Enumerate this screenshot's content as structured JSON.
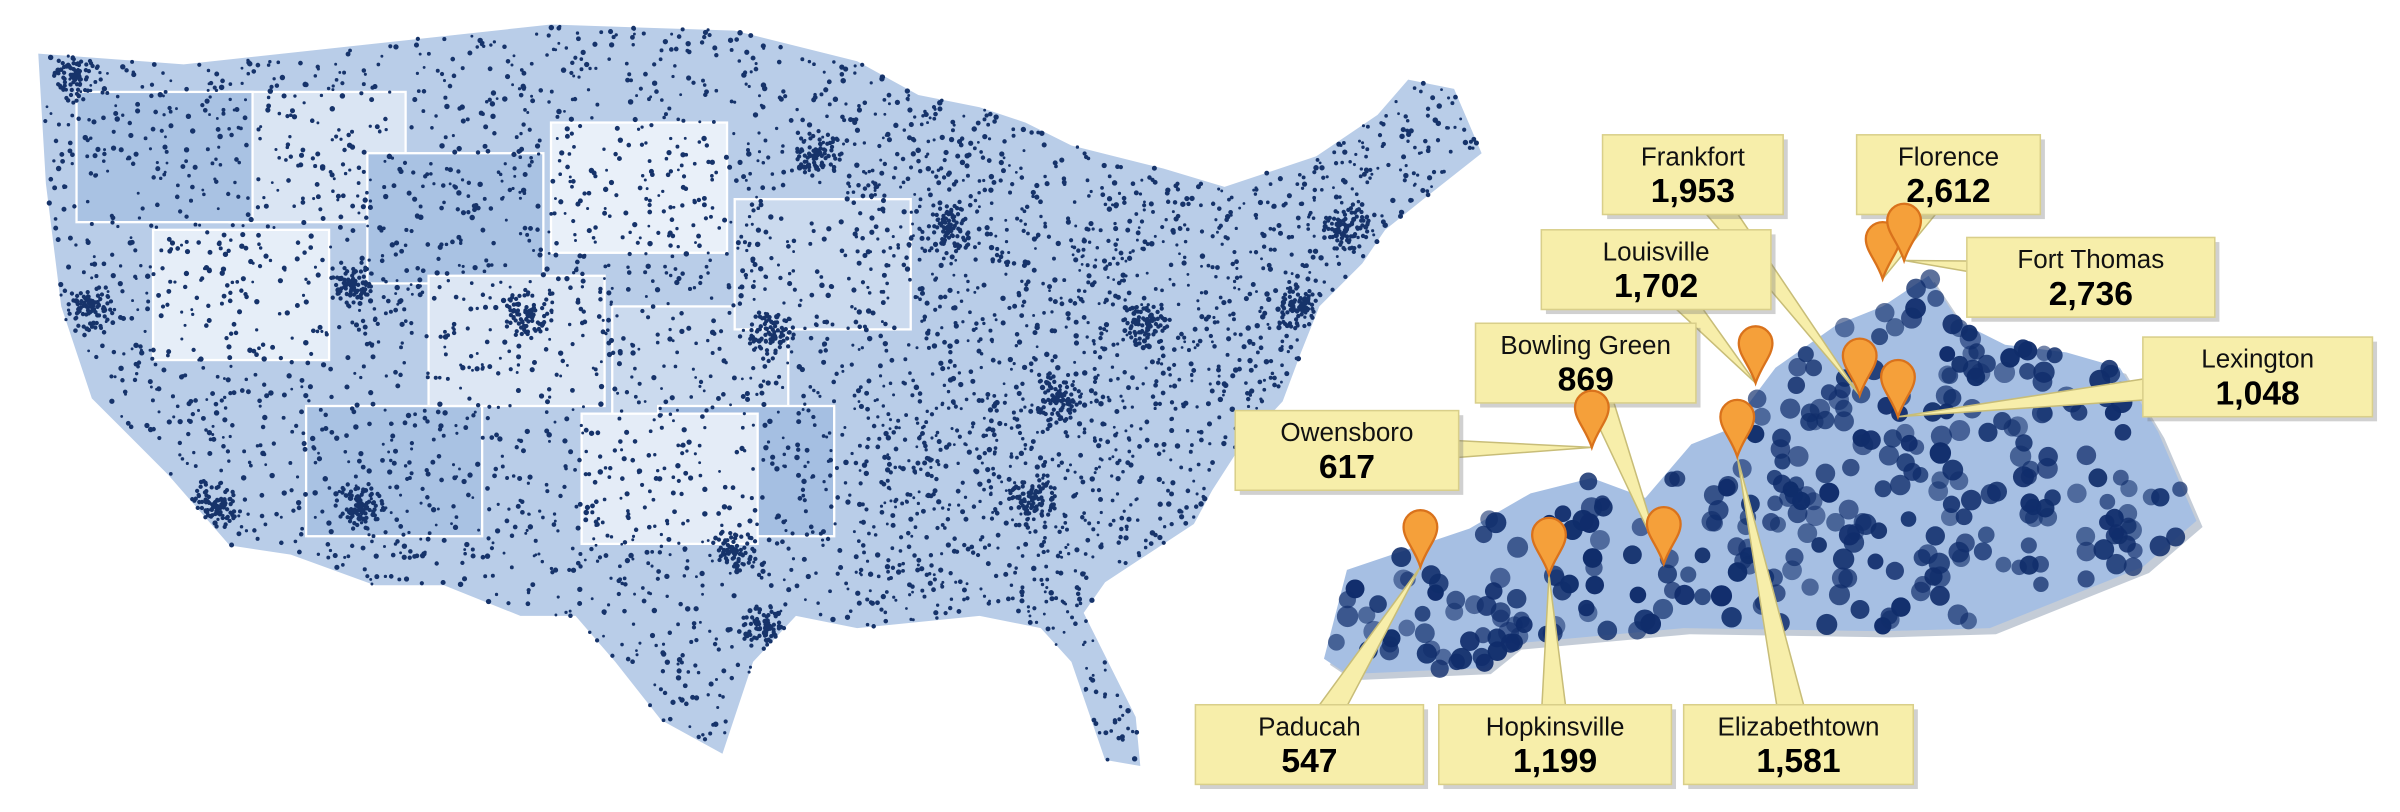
{
  "cities": [
    {
      "name": "Frankfort",
      "count": "1,953"
    },
    {
      "name": "Florence",
      "count": "2,612"
    },
    {
      "name": "Fort Thomas",
      "count": "2,736"
    },
    {
      "name": "Louisville",
      "count": "1,702"
    },
    {
      "name": "Bowling Green",
      "count": "869"
    },
    {
      "name": "Lexington",
      "count": "1,048"
    },
    {
      "name": "Owensboro",
      "count": "617"
    },
    {
      "name": "Paducah",
      "count": "547"
    },
    {
      "name": "Hopkinsville",
      "count": "1,199"
    },
    {
      "name": "Elizabethtown",
      "count": "1,581"
    }
  ]
}
